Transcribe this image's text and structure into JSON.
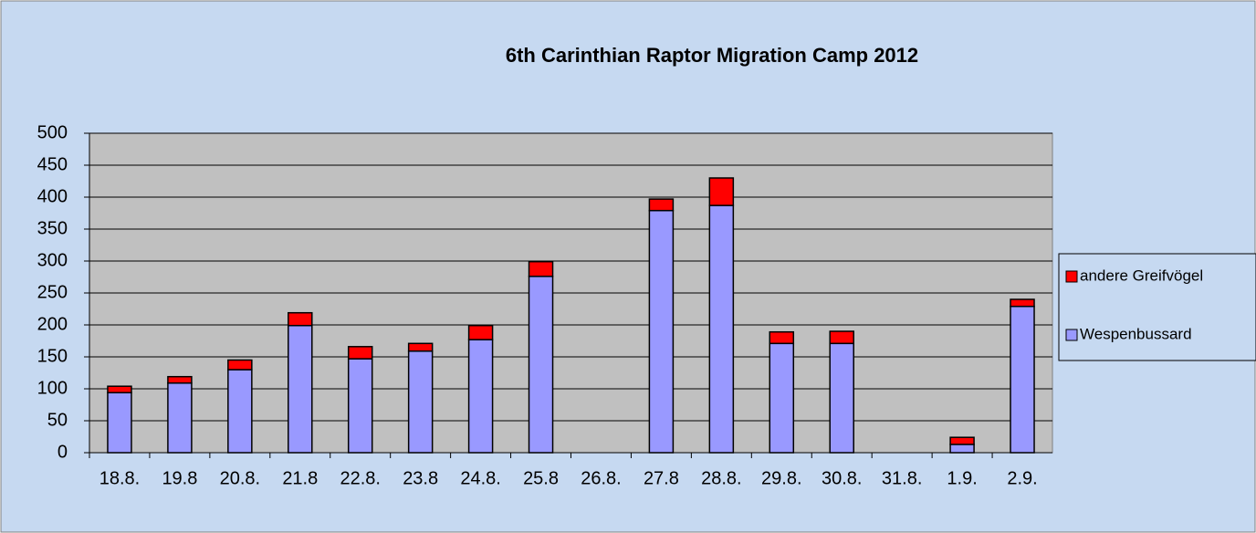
{
  "chart_data": {
    "type": "bar",
    "stacked": true,
    "title": "6th Carinthian Raptor Migration Camp 2012",
    "categories": [
      "18.8.",
      "19.8",
      "20.8.",
      "21.8",
      "22.8.",
      "23.8",
      "24.8.",
      "25.8",
      "26.8.",
      "27.8",
      "28.8.",
      "29.8.",
      "30.8.",
      "31.8.",
      "1.9.",
      "2.9."
    ],
    "series": [
      {
        "name": "Wespenbussard",
        "color": "#9999ff",
        "values": [
          94,
          109,
          130,
          199,
          147,
          159,
          177,
          276,
          0,
          379,
          387,
          171,
          171,
          0,
          13,
          229
        ]
      },
      {
        "name": "andere Greifvögel",
        "color": "#ff0000",
        "values": [
          10,
          10,
          15,
          20,
          19,
          12,
          22,
          23,
          0,
          18,
          43,
          18,
          19,
          0,
          11,
          11
        ]
      }
    ],
    "ylim": [
      0,
      500
    ],
    "yticks": [
      0,
      50,
      100,
      150,
      200,
      250,
      300,
      350,
      400,
      450,
      500
    ],
    "grid": true,
    "legend": "right"
  }
}
